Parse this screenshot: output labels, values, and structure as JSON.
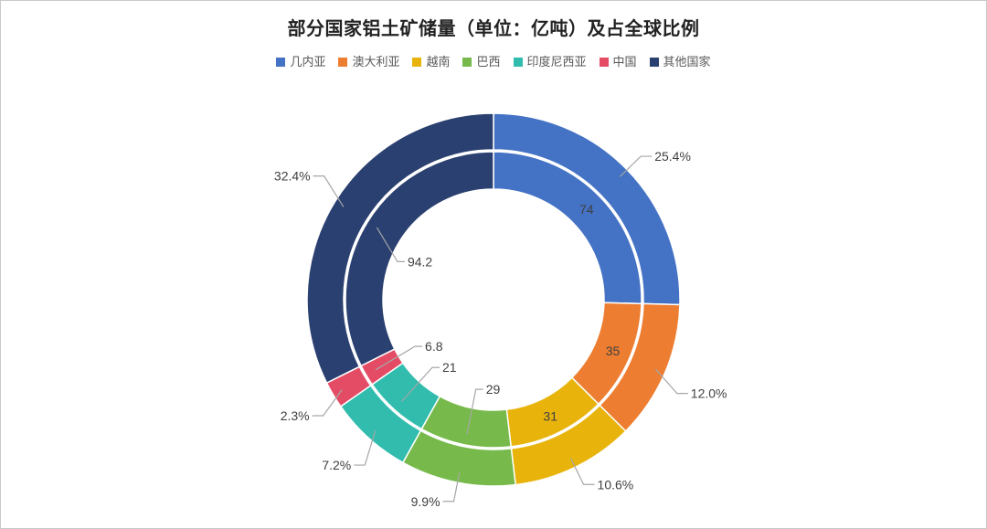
{
  "chart_data": {
    "type": "donut-double-ring",
    "title": "部分国家铝土矿储量（单位：亿吨）及占全球比例",
    "unit": "亿吨",
    "legend_position": "top",
    "rings": [
      "inner: reserve values",
      "outer: share of world"
    ],
    "slices": [
      {
        "name": "几内亚",
        "value": 74,
        "value_label": "74",
        "share_label": "25.4%",
        "color": "#4472C4",
        "inner_label_mode": "inside"
      },
      {
        "name": "澳大利亚",
        "value": 35,
        "value_label": "35",
        "share_label": "12.0%",
        "color": "#ED7D31",
        "inner_label_mode": "inside"
      },
      {
        "name": "越南",
        "value": 31,
        "value_label": "31",
        "share_label": "10.6%",
        "color": "#E8B40C",
        "inner_label_mode": "inside"
      },
      {
        "name": "巴西",
        "value": 29,
        "value_label": "29",
        "share_label": "9.9%",
        "color": "#77BA4B",
        "inner_label_mode": "callout"
      },
      {
        "name": "印度尼西亚",
        "value": 21,
        "value_label": "21",
        "share_label": "7.2%",
        "color": "#31BCAE",
        "inner_label_mode": "callout"
      },
      {
        "name": "中国",
        "value": 6.8,
        "value_label": "6.8",
        "share_label": "2.3%",
        "color": "#E44C66",
        "inner_label_mode": "callout"
      },
      {
        "name": "其他国家",
        "value": 94.2,
        "value_label": "94.2",
        "share_label": "32.4%",
        "color": "#2A4070",
        "inner_label_mode": "callout"
      }
    ],
    "colors": {
      "data_label": "#404040",
      "leader_line": "#A6A6A6",
      "title_text": "#222222",
      "legend_text": "#595959",
      "frame_border": "#C9C9C9",
      "slice_border": "#FFFFFF"
    }
  }
}
